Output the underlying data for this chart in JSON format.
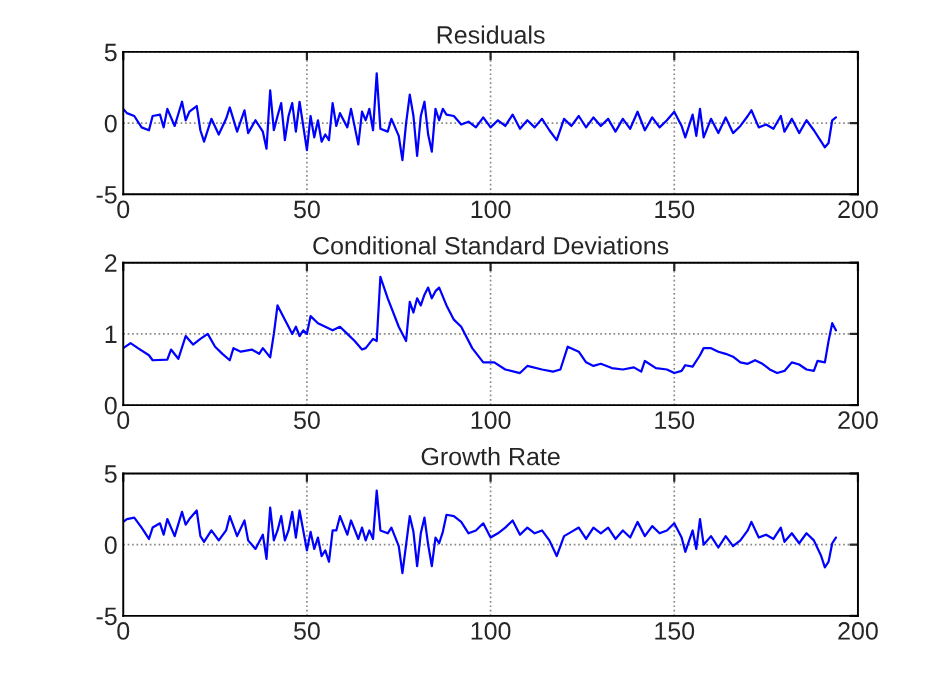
{
  "chart_data": [
    {
      "type": "line",
      "title": "Residuals",
      "xlim": [
        0,
        200
      ],
      "xticks": [
        0,
        50,
        100,
        150,
        200
      ],
      "ylim": [
        -5,
        5
      ],
      "yticks": [
        -5,
        0,
        5
      ],
      "grid": true,
      "line_style": "solid",
      "series": [
        {
          "color": "#0000ff",
          "x": [
            0,
            1,
            3,
            5,
            7,
            8,
            10,
            11,
            12,
            14,
            16,
            17,
            18,
            20,
            21,
            22,
            24,
            26,
            28,
            29,
            31,
            33,
            34,
            36,
            38,
            39,
            40,
            41,
            42,
            43,
            44,
            45,
            46,
            47,
            48,
            50,
            51,
            52,
            53,
            54,
            55,
            56,
            57,
            58,
            59,
            61,
            62,
            64,
            65,
            66,
            67,
            68,
            69,
            70,
            72,
            73,
            75,
            76,
            77,
            78,
            79,
            80,
            81,
            82,
            83,
            84,
            85,
            86,
            87,
            88,
            90,
            92,
            94,
            96,
            98,
            100,
            102,
            104,
            106,
            108,
            110,
            112,
            114,
            116,
            118,
            120,
            122,
            124,
            126,
            128,
            130,
            132,
            134,
            136,
            138,
            140,
            142,
            144,
            146,
            148,
            150,
            152,
            153,
            155,
            156,
            157,
            158,
            160,
            162,
            164,
            166,
            168,
            170,
            171,
            173,
            175,
            177,
            179,
            180,
            182,
            184,
            186,
            188,
            190,
            191,
            192,
            193,
            194
          ],
          "values": [
            1,
            0.7,
            0.5,
            -0.3,
            -0.5,
            0.5,
            0.6,
            -0.3,
            1,
            -0.2,
            1.5,
            0.2,
            0.8,
            1.2,
            -0.5,
            -1.3,
            0.3,
            -0.8,
            0.3,
            1.1,
            -0.6,
            0.9,
            -0.7,
            0.2,
            -0.6,
            -1.8,
            2.3,
            -0.5,
            0.5,
            1.4,
            -1.2,
            0.5,
            1.4,
            -0.6,
            1.5,
            -1.9,
            0.5,
            -1,
            0.2,
            -1.3,
            -0.8,
            -1.2,
            1.4,
            -0.2,
            0.7,
            -0.3,
            1,
            -1.5,
            0.8,
            0.2,
            1,
            -0.5,
            3.5,
            -0.4,
            -0.6,
            0.3,
            -0.9,
            -2.6,
            0,
            2,
            0.5,
            -2.3,
            0.5,
            1.5,
            -0.8,
            -2,
            1,
            0.2,
            1,
            0.6,
            0.5,
            -0.1,
            0.1,
            -0.3,
            0.4,
            -0.3,
            0.2,
            -0.2,
            0.6,
            -0.4,
            0.2,
            -0.3,
            0.3,
            -0.5,
            -1.2,
            0.3,
            -0.2,
            0.5,
            -0.3,
            0.4,
            -0.2,
            0.3,
            -0.6,
            0.3,
            -0.4,
            0.8,
            -0.5,
            0.4,
            -0.3,
            0.2,
            0.8,
            -0.2,
            -1,
            0.6,
            -0.9,
            1,
            -1,
            0.3,
            -0.7,
            0.4,
            -0.7,
            -0.2,
            0.5,
            0.9,
            -0.3,
            -0.1,
            -0.4,
            0.5,
            -0.6,
            0.3,
            -0.7,
            0.2,
            -0.5,
            -1.3,
            -1.7,
            -1.4,
            0.2,
            0.4
          ]
        }
      ]
    },
    {
      "type": "line",
      "title": "Conditional Standard Deviations",
      "xlim": [
        0,
        200
      ],
      "xticks": [
        0,
        50,
        100,
        150,
        200
      ],
      "ylim": [
        0,
        2
      ],
      "yticks": [
        0,
        1,
        2
      ],
      "grid": true,
      "line_style": "solid",
      "series": [
        {
          "color": "#0000ff",
          "x": [
            0,
            2,
            4,
            7,
            8,
            12,
            13,
            15,
            17,
            19,
            21,
            23,
            25,
            27,
            29,
            30,
            32,
            35,
            37,
            38,
            40,
            41,
            42,
            44,
            45,
            46,
            47,
            48,
            49,
            50,
            51,
            53,
            55,
            57,
            59,
            61,
            63,
            65,
            66,
            68,
            69,
            70,
            72,
            75,
            77,
            78,
            79,
            80,
            81,
            82,
            83,
            84,
            85,
            86,
            88,
            90,
            92,
            95,
            98,
            101,
            104,
            108,
            110,
            114,
            117,
            119,
            121,
            124,
            126,
            128,
            130,
            133,
            136,
            139,
            141,
            142,
            145,
            148,
            150,
            152,
            153,
            155,
            157,
            158,
            160,
            162,
            164,
            166,
            168,
            170,
            172,
            174,
            176,
            178,
            180,
            182,
            184,
            186,
            188,
            189,
            191,
            192,
            193,
            194
          ],
          "values": [
            0.8,
            0.87,
            0.8,
            0.7,
            0.63,
            0.64,
            0.78,
            0.65,
            0.97,
            0.85,
            0.93,
            1.0,
            0.82,
            0.72,
            0.63,
            0.8,
            0.75,
            0.78,
            0.72,
            0.8,
            0.67,
            1.0,
            1.4,
            1.2,
            1.1,
            1.0,
            1.1,
            0.97,
            1.05,
            1.0,
            1.25,
            1.15,
            1.1,
            1.05,
            1.1,
            1.0,
            0.9,
            0.78,
            0.8,
            0.93,
            0.9,
            1.8,
            1.5,
            1.1,
            0.9,
            1.45,
            1.3,
            1.5,
            1.4,
            1.55,
            1.65,
            1.5,
            1.6,
            1.65,
            1.4,
            1.2,
            1.1,
            0.8,
            0.6,
            0.6,
            0.5,
            0.45,
            0.55,
            0.5,
            0.47,
            0.5,
            0.82,
            0.75,
            0.6,
            0.55,
            0.58,
            0.52,
            0.5,
            0.53,
            0.47,
            0.62,
            0.52,
            0.5,
            0.45,
            0.48,
            0.56,
            0.54,
            0.7,
            0.8,
            0.8,
            0.75,
            0.72,
            0.68,
            0.6,
            0.58,
            0.63,
            0.58,
            0.5,
            0.45,
            0.48,
            0.6,
            0.57,
            0.5,
            0.48,
            0.62,
            0.6,
            0.9,
            1.15,
            1.05
          ]
        }
      ]
    },
    {
      "type": "line",
      "title": "Growth Rate",
      "xlim": [
        0,
        200
      ],
      "xticks": [
        0,
        50,
        100,
        150,
        200
      ],
      "ylim": [
        -5,
        5
      ],
      "yticks": [
        -5,
        0,
        5
      ],
      "grid": true,
      "line_style": "solid",
      "series": [
        {
          "color": "#0000ff",
          "x": [
            0,
            1,
            3,
            5,
            7,
            8,
            10,
            11,
            12,
            14,
            16,
            17,
            18,
            20,
            21,
            22,
            24,
            26,
            28,
            29,
            31,
            33,
            34,
            36,
            38,
            39,
            40,
            41,
            42,
            43,
            44,
            45,
            46,
            47,
            48,
            50,
            51,
            52,
            53,
            54,
            55,
            56,
            57,
            58,
            59,
            61,
            62,
            64,
            65,
            66,
            67,
            68,
            69,
            70,
            72,
            73,
            75,
            76,
            77,
            78,
            79,
            80,
            81,
            82,
            83,
            84,
            85,
            86,
            87,
            88,
            90,
            92,
            94,
            96,
            98,
            100,
            102,
            104,
            106,
            108,
            110,
            112,
            114,
            116,
            118,
            120,
            122,
            124,
            126,
            128,
            130,
            132,
            134,
            136,
            138,
            140,
            142,
            144,
            146,
            148,
            150,
            152,
            153,
            155,
            156,
            157,
            158,
            160,
            162,
            164,
            166,
            168,
            170,
            171,
            173,
            175,
            177,
            179,
            180,
            182,
            184,
            186,
            188,
            190,
            191,
            192,
            193,
            194
          ],
          "values": [
            1.6,
            1.8,
            1.9,
            1.2,
            0.4,
            1.2,
            1.5,
            0.7,
            1.8,
            0.6,
            2.3,
            1.4,
            1.8,
            2.4,
            0.6,
            0.2,
            1.0,
            0.3,
            1.0,
            2.0,
            0.6,
            1.7,
            0.3,
            -0.3,
            0.7,
            -1.0,
            2.6,
            0.3,
            1.0,
            2.0,
            0.3,
            1.0,
            2.3,
            0.5,
            2.4,
            -0.4,
            0.9,
            -0.3,
            0.5,
            -0.8,
            -0.4,
            -1.2,
            1.0,
            1.0,
            2.0,
            0.7,
            1.7,
            0.4,
            1.2,
            0.3,
            1.0,
            0.4,
            3.8,
            1.0,
            0.8,
            1.2,
            -0.1,
            -2.0,
            0,
            2.0,
            0.9,
            -1.5,
            0.8,
            1.9,
            0,
            -1.5,
            0.5,
            0.1,
            0.9,
            2.1,
            2.0,
            1.6,
            0.8,
            1.0,
            1.5,
            0.5,
            0.8,
            1.2,
            1.7,
            0.7,
            1.2,
            0.8,
            1.0,
            0.3,
            -0.8,
            0.6,
            0.9,
            1.2,
            0.4,
            1.2,
            0.8,
            1.2,
            0.4,
            1.0,
            0.5,
            1.6,
            0.6,
            1.3,
            0.8,
            1.0,
            1.5,
            0.5,
            -0.5,
            1.0,
            -0.3,
            1.8,
            0,
            0.6,
            -0.2,
            0.6,
            -0.1,
            0.3,
            1.0,
            1.6,
            0.5,
            0.7,
            0.4,
            1.2,
            0.2,
            0.8,
            0.1,
            0.8,
            0.3,
            -0.8,
            -1.6,
            -1.2,
            0.1,
            0.5
          ]
        }
      ]
    }
  ]
}
